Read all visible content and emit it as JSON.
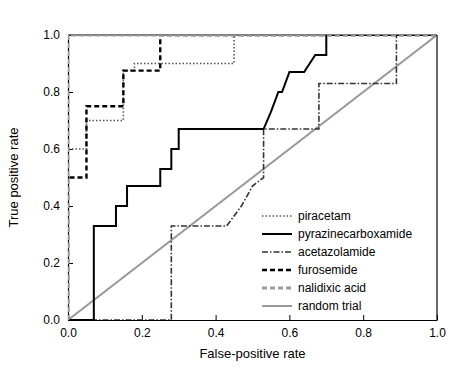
{
  "chart_data": {
    "type": "line",
    "x_label": "False-positive rate",
    "y_label": "True positive rate",
    "xlim": [
      0,
      1
    ],
    "ylim": [
      0,
      1
    ],
    "xticks": [
      {
        "value": 0,
        "label": "0.0"
      },
      0.2,
      0.4,
      0.6,
      0.8,
      {
        "value": 1,
        "label": "1.0"
      }
    ],
    "yticks": [
      {
        "value": 0,
        "label": "0.0"
      },
      0.2,
      0.4,
      0.6,
      0.8,
      {
        "value": 1,
        "label": "1.0"
      }
    ],
    "grid": false,
    "legend": "lower right",
    "series": [
      {
        "name": "piracetam",
        "color": "#555555",
        "line_style": "dotted",
        "x": [
          0,
          0,
          0.05,
          0.05,
          0.15,
          0.15,
          0.18,
          0.18,
          0.45,
          0.45,
          1
        ],
        "values": [
          0,
          0.6,
          0.6,
          0.7,
          0.7,
          0.875,
          0.875,
          0.9,
          0.9,
          1,
          1
        ]
      },
      {
        "name": "pyrazinecarboxamide",
        "color": "#000000",
        "line_style": "solid",
        "x": [
          0,
          0.07,
          0.07,
          0.13,
          0.13,
          0.16,
          0.16,
          0.25,
          0.25,
          0.28,
          0.28,
          0.3,
          0.3,
          0.53,
          0.55,
          0.57,
          0.58,
          0.6,
          0.64,
          0.67,
          0.7,
          0.7,
          1
        ],
        "values": [
          0,
          0,
          0.33,
          0.33,
          0.4,
          0.4,
          0.47,
          0.47,
          0.53,
          0.53,
          0.6,
          0.6,
          0.67,
          0.67,
          0.73,
          0.8,
          0.8,
          0.87,
          0.87,
          0.93,
          0.93,
          1,
          1
        ]
      },
      {
        "name": "acetazolamide",
        "color": "#333333",
        "line_style": "dashdot",
        "x": [
          0,
          0.28,
          0.28,
          0.43,
          0.47,
          0.5,
          0.53,
          0.53,
          0.68,
          0.68,
          0.89,
          0.89,
          1
        ],
        "values": [
          0,
          0,
          0.33,
          0.33,
          0.4,
          0.47,
          0.5,
          0.67,
          0.67,
          0.83,
          0.83,
          1,
          1
        ]
      },
      {
        "name": "furosemide",
        "color": "#000000",
        "line_style": "dashed",
        "x": [
          0,
          0,
          0.05,
          0.05,
          0.15,
          0.15,
          0.25,
          0.25,
          1
        ],
        "values": [
          0,
          0.5,
          0.5,
          0.75,
          0.75,
          0.875,
          0.875,
          1,
          1
        ]
      },
      {
        "name": "nalidixic acid",
        "color": "#999999",
        "line_style": "dashed",
        "x": [
          0,
          0,
          1
        ],
        "values": [
          0,
          1,
          1
        ]
      },
      {
        "name": "random trial",
        "color": "#999999",
        "line_style": "solid",
        "x": [
          0,
          1
        ],
        "values": [
          0,
          1
        ]
      }
    ]
  }
}
